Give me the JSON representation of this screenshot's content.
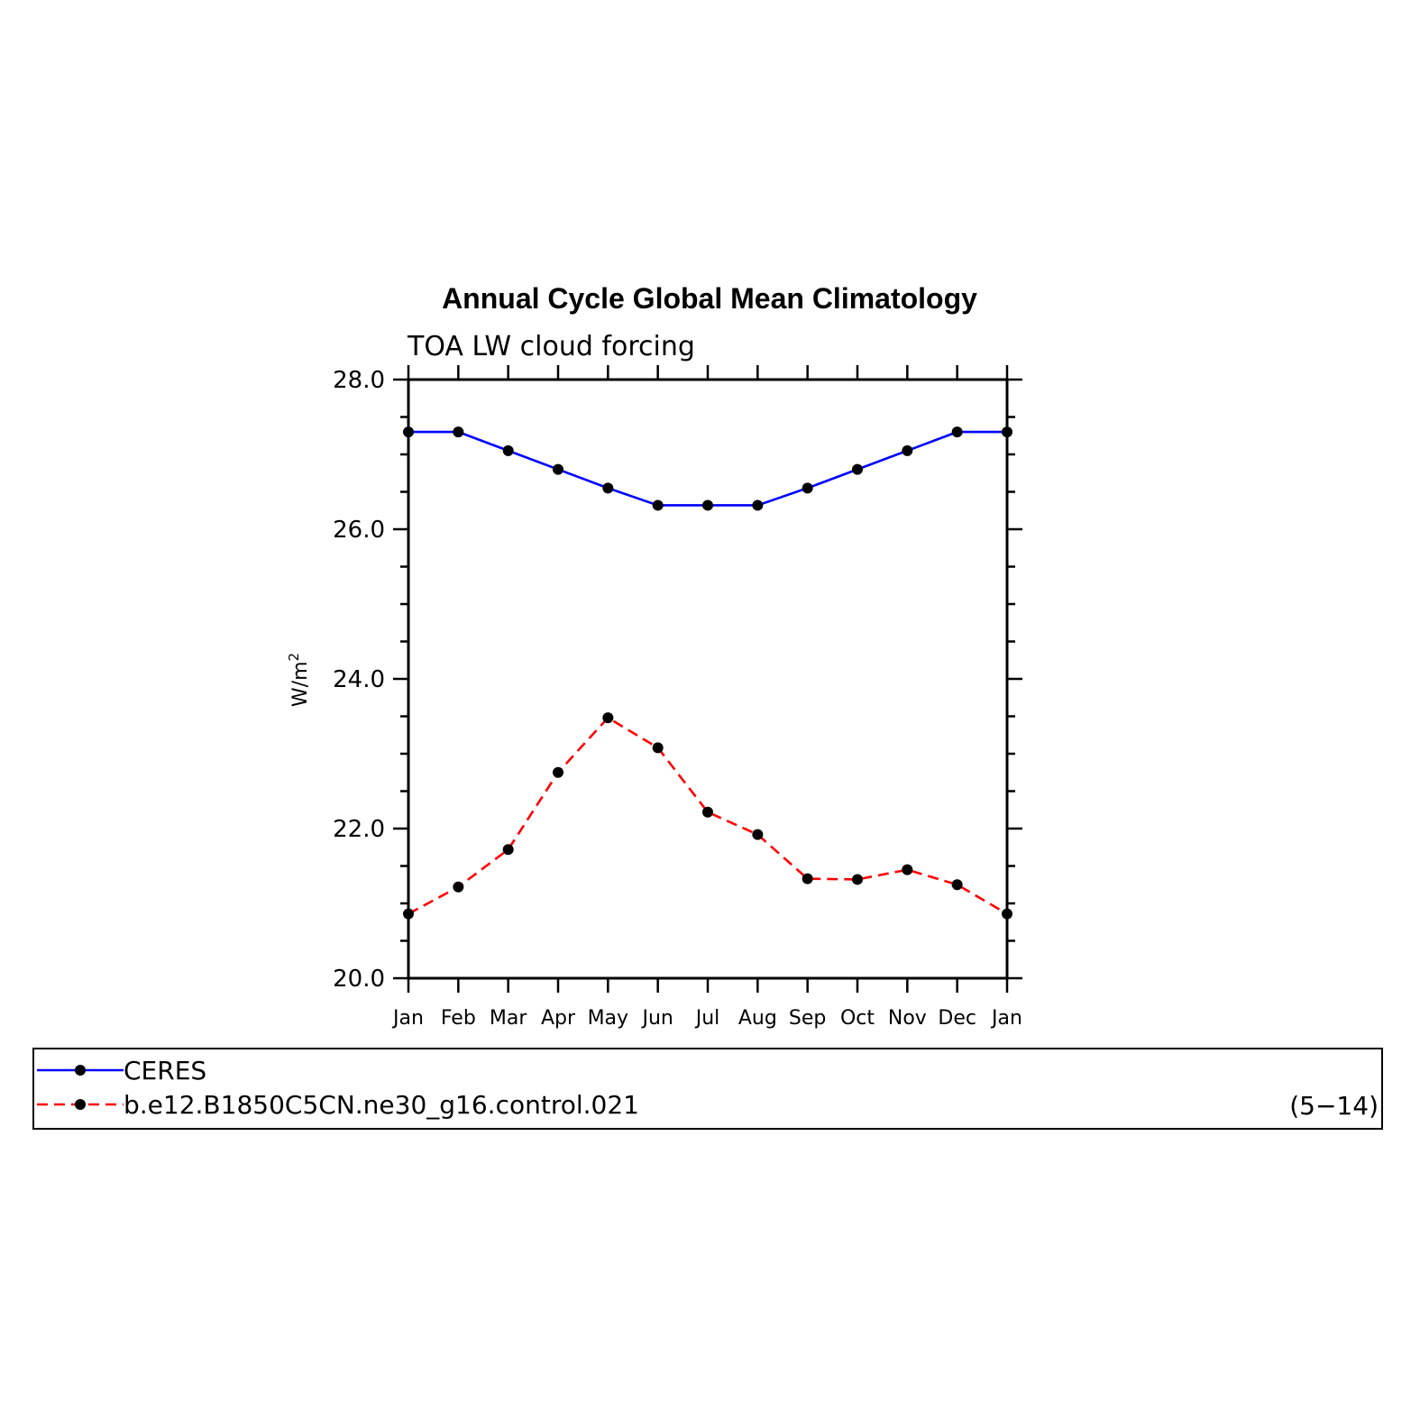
{
  "chart_data": {
    "type": "line",
    "title": "Annual Cycle Global Mean Climatology",
    "subtitle": "TOA LW cloud forcing",
    "ylabel": "W/m",
    "ylabel_sup": "2",
    "categories": [
      "Jan",
      "Feb",
      "Mar",
      "Apr",
      "May",
      "Jun",
      "Jul",
      "Aug",
      "Sep",
      "Oct",
      "Nov",
      "Dec",
      "Jan"
    ],
    "ylim": [
      20.0,
      28.0
    ],
    "yticks": [
      "20.0",
      "22.0",
      "24.0",
      "26.0",
      "28.0"
    ],
    "grid": false,
    "legend_position": "bottom",
    "series": [
      {
        "name": "CERES",
        "color": "#0000ff",
        "line_style": "solid",
        "marker": "filled-circle",
        "values": [
          27.3,
          27.3,
          27.05,
          26.8,
          26.55,
          26.32,
          26.32,
          26.32,
          26.55,
          26.8,
          27.05,
          27.3,
          27.3
        ]
      },
      {
        "name": "b.e12.B1850C5CN.ne30_g16.control.021",
        "color": "#ff0000",
        "line_style": "dashed",
        "marker": "filled-circle",
        "values": [
          20.86,
          21.22,
          21.72,
          22.75,
          23.48,
          23.08,
          22.22,
          21.92,
          21.33,
          21.32,
          21.45,
          21.25,
          20.86
        ]
      }
    ],
    "annotation": "(5−14)"
  }
}
